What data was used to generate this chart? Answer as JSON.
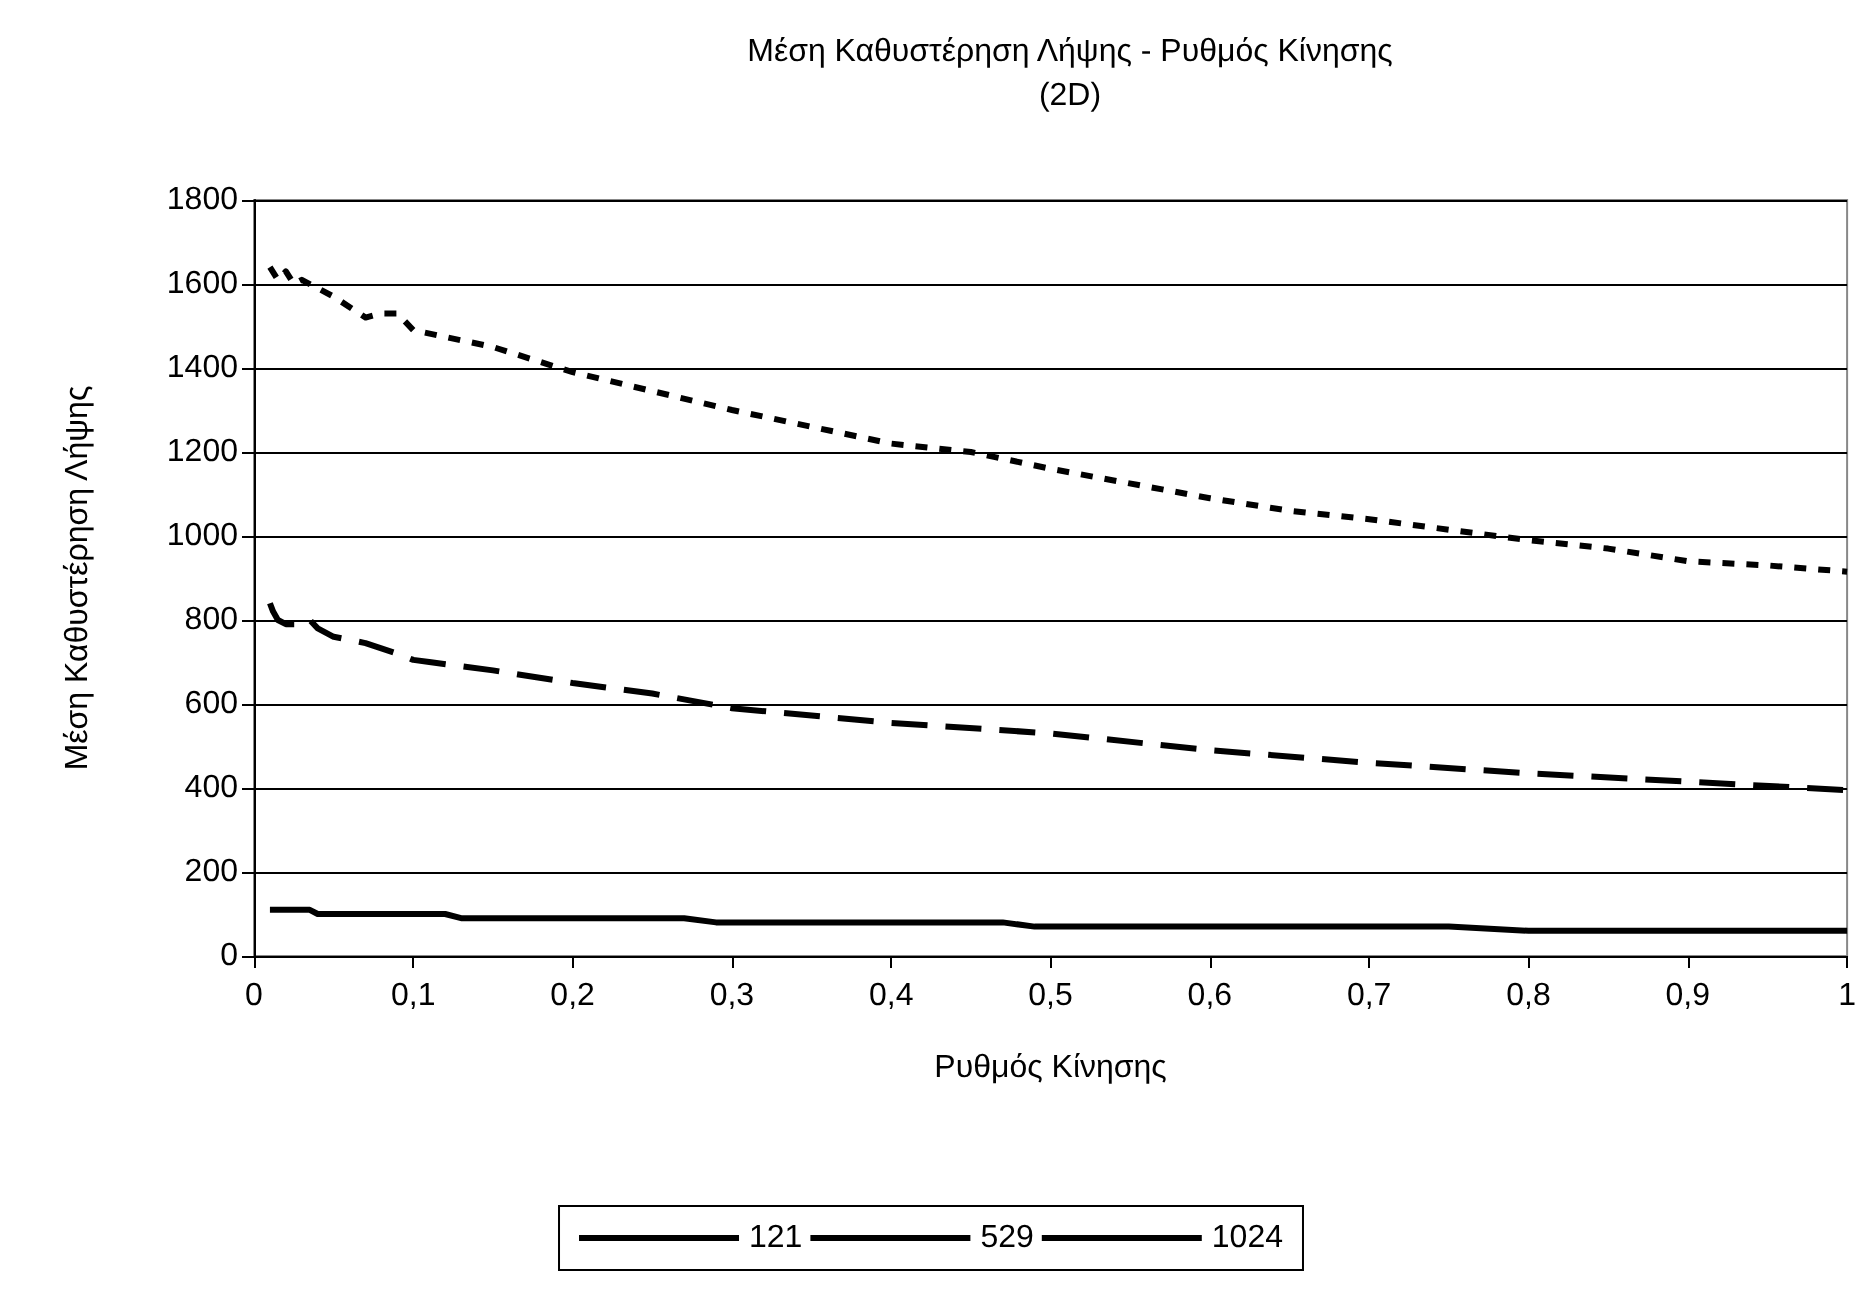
{
  "chart_data": {
    "type": "line",
    "title": "Μέση Καθυστέρηση Λήψης - Ρυθμός Κίνησης\n(2D)",
    "xlabel": "Ρυθμός Κίνησης",
    "ylabel": "Μέση Καθυστέρηση Λήψης",
    "xlim": [
      0,
      1
    ],
    "xticks": [
      0,
      {
        "value": 0.1,
        "label": "0,1"
      },
      {
        "value": 0.2,
        "label": "0,2"
      },
      {
        "value": 0.3,
        "label": "0,3"
      },
      {
        "value": 0.4,
        "label": "0,4"
      },
      {
        "value": 0.5,
        "label": "0,5"
      },
      {
        "value": 0.6,
        "label": "0,6"
      },
      {
        "value": 0.7,
        "label": "0,7"
      },
      {
        "value": 0.8,
        "label": "0,8"
      },
      {
        "value": 0.9,
        "label": "0,9"
      },
      1
    ],
    "ylim": [
      0,
      1800
    ],
    "yticks": [
      0,
      200,
      400,
      600,
      800,
      1000,
      1200,
      1400,
      1600,
      1800
    ],
    "grid": "y",
    "legend": "bottom",
    "marker": "none",
    "series": [
      {
        "name": "121",
        "color": "#000000",
        "line_style": "solid",
        "x": [
          0.01,
          0.035,
          0.04,
          0.12,
          0.13,
          0.27,
          0.29,
          0.47,
          0.49,
          0.75,
          0.8,
          1
        ],
        "values": [
          110,
          110,
          100,
          100,
          90,
          90,
          80,
          80,
          70,
          70,
          60,
          60
        ]
      },
      {
        "name": "529",
        "color": "#000000",
        "line_style": "dashed",
        "x": [
          0.01,
          0.012,
          0.015,
          0.02,
          0.03,
          0.035,
          0.04,
          0.05,
          0.07,
          0.09,
          0.1,
          0.11,
          0.15,
          0.2,
          0.25,
          0.3,
          0.4,
          0.5,
          0.6,
          0.7,
          0.8,
          0.9,
          1
        ],
        "values": [
          840,
          820,
          800,
          790,
          790,
          800,
          780,
          760,
          745,
          720,
          705,
          700,
          680,
          650,
          625,
          590,
          555,
          530,
          490,
          460,
          435,
          415,
          395
        ]
      },
      {
        "name": "1024",
        "color": "#000000",
        "line_style": "dotted",
        "x": [
          0.01,
          0.015,
          0.02,
          0.025,
          0.03,
          0.04,
          0.05,
          0.07,
          0.08,
          0.09,
          0.1,
          0.15,
          0.2,
          0.3,
          0.4,
          0.45,
          0.5,
          0.6,
          0.65,
          0.7,
          0.75,
          0.8,
          0.85,
          0.9,
          0.95,
          1
        ],
        "values": [
          1640,
          1610,
          1630,
          1600,
          1610,
          1590,
          1570,
          1520,
          1530,
          1530,
          1490,
          1450,
          1390,
          1300,
          1220,
          1200,
          1160,
          1090,
          1060,
          1040,
          1015,
          990,
          970,
          940,
          930,
          915
        ]
      }
    ]
  }
}
